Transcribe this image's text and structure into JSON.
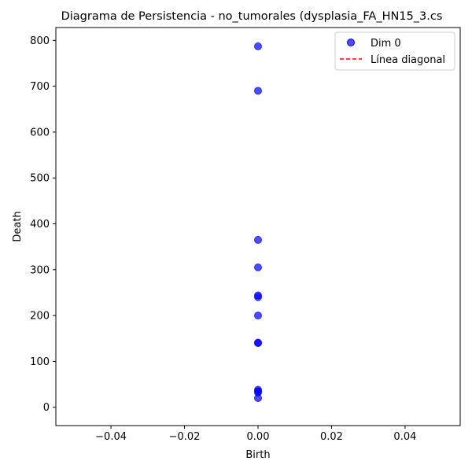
{
  "chart_data": {
    "type": "scatter",
    "title": "Diagrama de Persistencia - no_tumorales (dysplasia_FA_HN15_3.cs",
    "xlabel": "Birth",
    "ylabel": "Death",
    "xlim": [
      -0.055,
      0.055
    ],
    "ylim": [
      -40,
      828
    ],
    "x_ticks": [
      "−0.04",
      "−0.02",
      "0.00",
      "0.02",
      "0.04"
    ],
    "x_tick_values": [
      -0.04,
      -0.02,
      0.0,
      0.02,
      0.04
    ],
    "y_ticks": [
      "0",
      "100",
      "200",
      "300",
      "400",
      "500",
      "600",
      "700",
      "800"
    ],
    "y_tick_values": [
      0,
      100,
      200,
      300,
      400,
      500,
      600,
      700,
      800
    ],
    "grid": false,
    "legend_position": "top-right",
    "series": [
      {
        "name": "Dim 0",
        "kind": "points",
        "color": "#0000ff",
        "points": [
          [
            0,
            787
          ],
          [
            0,
            690
          ],
          [
            0,
            365
          ],
          [
            0,
            305
          ],
          [
            0,
            244
          ],
          [
            0,
            240
          ],
          [
            0,
            200
          ],
          [
            0,
            141
          ],
          [
            0,
            140
          ],
          [
            0,
            38
          ],
          [
            0,
            35
          ],
          [
            0,
            32
          ],
          [
            0,
            20
          ]
        ]
      },
      {
        "name": "Línea diagonal",
        "kind": "line",
        "color": "#ff0000",
        "style": "dashed",
        "points": []
      }
    ]
  }
}
